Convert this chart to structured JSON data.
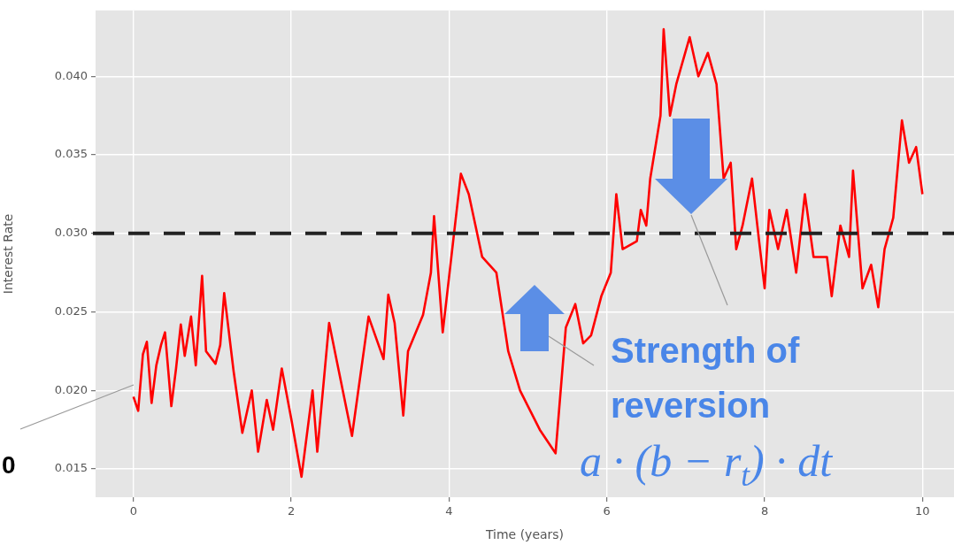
{
  "chart_data": {
    "type": "line",
    "xlabel": "Time (years)",
    "ylabel": "Interest Rate",
    "series": [
      {
        "color": "#ff0000",
        "x": [
          0,
          0.06,
          0.12,
          0.17,
          0.23,
          0.29,
          0.35,
          0.4,
          0.48,
          0.54,
          0.6,
          0.65,
          0.73,
          0.79,
          0.87,
          0.92,
          1.04,
          1.1,
          1.15,
          1.27,
          1.38,
          1.5,
          1.58,
          1.69,
          1.77,
          1.88,
          2,
          2.13,
          2.27,
          2.33,
          2.48,
          2.58,
          2.77,
          2.98,
          3.17,
          3.23,
          3.31,
          3.42,
          3.48,
          3.67,
          3.77,
          3.81,
          3.92,
          4.15,
          4.25,
          4.42,
          4.6,
          4.75,
          4.9,
          5.0,
          5.15,
          5.35,
          5.48,
          5.6,
          5.7,
          5.8,
          5.93,
          6.05,
          6.12,
          6.2,
          6.38,
          6.43,
          6.5,
          6.55,
          6.68,
          6.72,
          6.8,
          6.88,
          7.05,
          7.16,
          7.28,
          7.39,
          7.48,
          7.57,
          7.64,
          7.72,
          7.84,
          7.93,
          8.0,
          8.06,
          8.17,
          8.28,
          8.4,
          8.51,
          8.62,
          8.79,
          8.85,
          8.96,
          9.07,
          9.12,
          9.24,
          9.35,
          9.44,
          9.52,
          9.63,
          9.74,
          9.83,
          9.92,
          10.0
        ],
        "values": [
          0.0196,
          0.0187,
          0.0223,
          0.0231,
          0.0192,
          0.0216,
          0.0229,
          0.0237,
          0.019,
          0.0214,
          0.0242,
          0.0222,
          0.0247,
          0.0216,
          0.0273,
          0.0225,
          0.0217,
          0.0229,
          0.0262,
          0.0212,
          0.0173,
          0.02,
          0.0161,
          0.0194,
          0.0175,
          0.0214,
          0.0182,
          0.0145,
          0.02,
          0.0161,
          0.0243,
          0.0218,
          0.0171,
          0.0247,
          0.022,
          0.0261,
          0.0243,
          0.0184,
          0.0225,
          0.0248,
          0.0275,
          0.0311,
          0.0237,
          0.0338,
          0.0325,
          0.0285,
          0.0275,
          0.0225,
          0.02,
          0.019,
          0.0175,
          0.016,
          0.024,
          0.0255,
          0.023,
          0.0235,
          0.026,
          0.0275,
          0.0325,
          0.029,
          0.0295,
          0.0315,
          0.0305,
          0.0335,
          0.0375,
          0.043,
          0.0375,
          0.0395,
          0.0425,
          0.04,
          0.0415,
          0.0395,
          0.0335,
          0.0345,
          0.029,
          0.0305,
          0.0335,
          0.0295,
          0.0265,
          0.0315,
          0.029,
          0.0315,
          0.0275,
          0.0325,
          0.0285,
          0.0285,
          0.026,
          0.0305,
          0.0285,
          0.034,
          0.0265,
          0.028,
          0.0253,
          0.029,
          0.031,
          0.0372,
          0.0345,
          0.0355,
          0.0325
        ]
      }
    ],
    "xlim": [
      -0.48,
      10.4
    ],
    "ylim": [
      0.0132,
      0.0442
    ],
    "xticks": [
      0,
      2,
      4,
      6,
      8,
      10
    ],
    "yticks": [
      0.015,
      {
        "value": 0.02,
        "label": "0.020"
      },
      0.025,
      {
        "value": 0.03,
        "label": "0.030"
      },
      0.035,
      {
        "value": 0.04,
        "label": "0.040"
      }
    ],
    "grid": true,
    "marker": "none",
    "line_style": "solid",
    "ref_lines": [
      {
        "axis": "y",
        "value": 0.03,
        "color": "#222222",
        "line_style": "dashed"
      }
    ],
    "annotations": [
      "0",
      "Strength of reversion",
      "a · (b − r$_{t}$) · dt"
    ]
  }
}
